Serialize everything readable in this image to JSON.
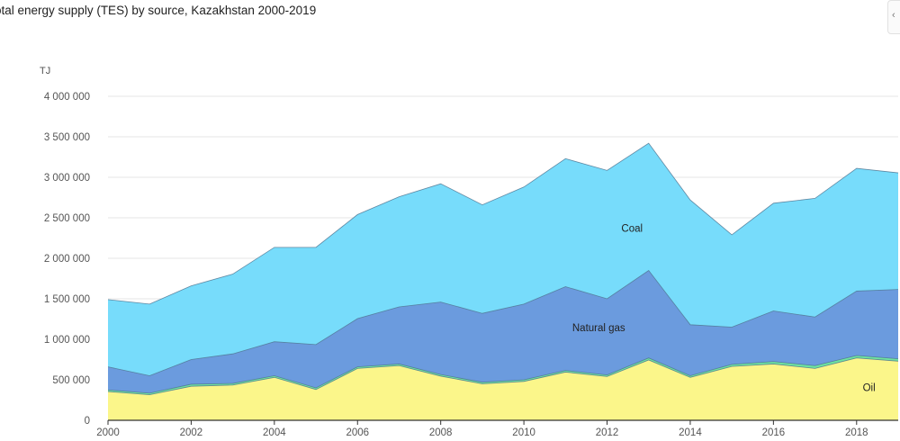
{
  "header": {
    "title": "otal energy supply (TES) by source, Kazakhstan 2000-2019",
    "menu_glyph": "‹"
  },
  "chart_data": {
    "type": "area",
    "stacked": true,
    "title": "otal energy supply (TES) by source, Kazakhstan 2000-2019",
    "ylabel": "TJ",
    "xlabel": "",
    "ylim": [
      0,
      4000000
    ],
    "xlim": [
      2000,
      2019
    ],
    "grid": true,
    "x": [
      2000,
      2001,
      2002,
      2003,
      2004,
      2005,
      2006,
      2007,
      2008,
      2009,
      2010,
      2011,
      2012,
      2013,
      2014,
      2015,
      2016,
      2017,
      2018,
      2019
    ],
    "x_ticks": [
      2000,
      2002,
      2004,
      2006,
      2008,
      2010,
      2012,
      2014,
      2016,
      2018
    ],
    "x_tick_labels": [
      "2000",
      "2002",
      "2004",
      "2006",
      "2008",
      "2010",
      "2012",
      "2014",
      "2016",
      "2018"
    ],
    "y_ticks": [
      0,
      500000,
      1000000,
      1500000,
      2000000,
      2500000,
      3000000,
      3500000,
      4000000
    ],
    "y_tick_labels": [
      "0",
      "500 000",
      "1 000 000",
      "1 500 000",
      "2 000 000",
      "2 500 000",
      "3 000 000",
      "3 500 000",
      "4 000 000"
    ],
    "series": [
      {
        "name": "Oil",
        "color": "#fbf68a",
        "label": "Oil",
        "values": [
          355000,
          315000,
          420000,
          435000,
          530000,
          380000,
          640000,
          675000,
          545000,
          450000,
          480000,
          595000,
          540000,
          745000,
          530000,
          665000,
          695000,
          640000,
          770000,
          730000
        ]
      },
      {
        "name": "",
        "color": "#6ee3a0",
        "values": [
          20000,
          20000,
          25000,
          20000,
          20000,
          20000,
          20000,
          20000,
          20000,
          20000,
          20000,
          20000,
          20000,
          25000,
          20000,
          25000,
          30000,
          35000,
          30000,
          30000
        ]
      },
      {
        "name": "Natural gas",
        "color": "#6b9bde",
        "label": "Natural gas",
        "values": [
          285000,
          215000,
          305000,
          365000,
          420000,
          535000,
          595000,
          705000,
          895000,
          850000,
          935000,
          1035000,
          940000,
          1080000,
          630000,
          460000,
          625000,
          600000,
          795000,
          855000
        ]
      },
      {
        "name": "Coal",
        "color": "#77dcfb",
        "label": "Coal",
        "values": [
          830000,
          885000,
          910000,
          985000,
          1165000,
          1200000,
          1285000,
          1360000,
          1460000,
          1340000,
          1445000,
          1580000,
          1585000,
          1570000,
          1540000,
          1140000,
          1330000,
          1465000,
          1515000,
          1440000
        ]
      }
    ],
    "annotations": [
      {
        "text": "Coal",
        "x": 2012.6,
        "y": 2330000
      },
      {
        "text": "Natural gas",
        "x": 2011.8,
        "y": 1100000
      },
      {
        "text": "Oil",
        "x": 2018.3,
        "y": 360000
      }
    ]
  }
}
